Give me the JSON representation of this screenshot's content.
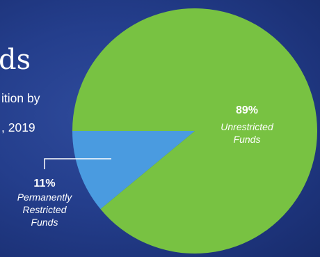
{
  "header": {
    "title_fragment": "ds",
    "subtitle_line1": "ition by",
    "subtitle_line2": ", 2019"
  },
  "colors": {
    "unrestricted": "#78c242",
    "permanently_restricted": "#4a9be0",
    "leader_line": "#ffffff"
  },
  "chart_data": {
    "type": "pie",
    "title": "",
    "slices": [
      {
        "name": "Unrestricted Funds",
        "label_lines": [
          "Unrestricted",
          "Funds"
        ],
        "value": 89,
        "pct_label": "89%"
      },
      {
        "name": "Permanently Restricted Funds",
        "label_lines": [
          "Permanently",
          "Restricted",
          "Funds"
        ],
        "value": 11,
        "pct_label": "11%"
      }
    ]
  }
}
